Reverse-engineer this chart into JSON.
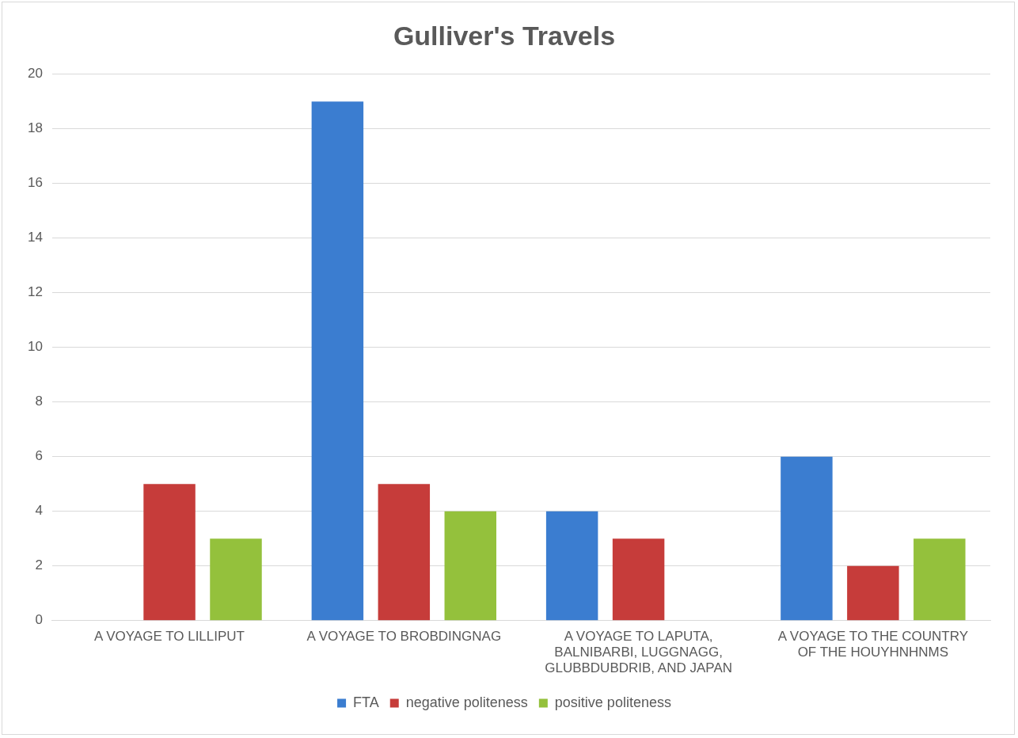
{
  "chart_data": {
    "type": "bar",
    "title": "Gulliver's Travels",
    "categories": [
      "A VOYAGE TO LILLIPUT",
      "A VOYAGE TO BROBDINGNAG",
      "A VOYAGE TO LAPUTA, BALNIBARBI, LUGGNAGG, GLUBBDUBDRIB, AND JAPAN",
      "A VOYAGE TO THE COUNTRY OF THE HOUYHNHNMS"
    ],
    "series": [
      {
        "name": "FTA",
        "color": "#3b7dd0",
        "values": [
          0,
          19,
          4,
          6
        ]
      },
      {
        "name": "negative politeness",
        "color": "#c63c3a",
        "values": [
          5,
          5,
          3,
          2
        ]
      },
      {
        "name": "positive politeness",
        "color": "#94c13c",
        "values": [
          3,
          4,
          0,
          3
        ]
      }
    ],
    "ylim": [
      0,
      20
    ],
    "yticks": [
      0,
      2,
      4,
      6,
      8,
      10,
      12,
      14,
      16,
      18,
      20
    ],
    "grid": "y",
    "legend": "bottom"
  }
}
